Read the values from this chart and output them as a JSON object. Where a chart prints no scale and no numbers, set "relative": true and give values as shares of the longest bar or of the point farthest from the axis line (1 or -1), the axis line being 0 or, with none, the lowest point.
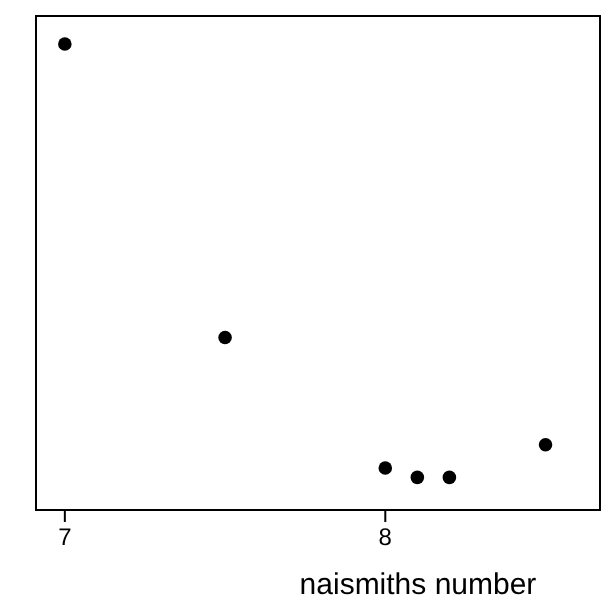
{
  "chart_data": {
    "type": "scatter",
    "xlabel": "naismiths number",
    "relative": true,
    "x": [
      7.0,
      7.5,
      8.0,
      8.1,
      8.2,
      8.5
    ],
    "values": [
      1,
      0.37,
      0.09,
      0.07,
      0.07,
      0.14
    ],
    "color": "#000000",
    "marker": "circle",
    "xlim": [
      6.91,
      8.67
    ],
    "xticks": [
      7,
      8
    ]
  }
}
